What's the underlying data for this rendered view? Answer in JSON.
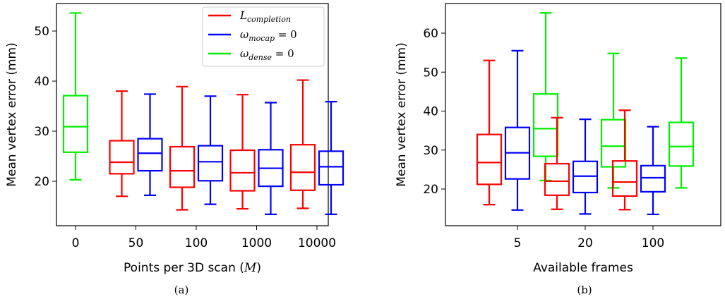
{
  "chart_data": [
    {
      "type": "box",
      "caption": "(a)",
      "xlabel": "Points per 3D scan (M)",
      "ylabel": "Mean vertex error (mm)",
      "ylim": [
        11.5,
        57
      ],
      "yticks": [
        20,
        30,
        40,
        50
      ],
      "categories": [
        "0",
        "50",
        "100",
        "1000",
        "10000"
      ],
      "legend": {
        "placement": "top-right",
        "entries": [
          {
            "label": "L_completion",
            "color": "#ff0000"
          },
          {
            "label": "ω_mocap = 0",
            "color": "#0000ff"
          },
          {
            "label": "ω_dense = 0",
            "color": "#00ee00"
          }
        ]
      },
      "boxes": [
        {
          "category": "0",
          "series": "ω_dense = 0",
          "color": "#00ee00",
          "whislo": 20.3,
          "q1": 25.8,
          "med": 30.9,
          "q3": 37.1,
          "whishi": 53.6
        },
        {
          "category": "50",
          "series": "L_completion",
          "color": "#ff0000",
          "whislo": 17.0,
          "q1": 21.5,
          "med": 23.8,
          "q3": 28.1,
          "whishi": 38.0
        },
        {
          "category": "50",
          "series": "ω_mocap = 0",
          "color": "#0000ff",
          "whislo": 17.2,
          "q1": 22.1,
          "med": 25.6,
          "q3": 28.5,
          "whishi": 37.4
        },
        {
          "category": "100",
          "series": "L_completion",
          "color": "#ff0000",
          "whislo": 14.3,
          "q1": 18.8,
          "med": 22.1,
          "q3": 26.9,
          "whishi": 38.9
        },
        {
          "category": "100",
          "series": "ω_mocap = 0",
          "color": "#0000ff",
          "whislo": 15.4,
          "q1": 20.1,
          "med": 23.9,
          "q3": 27.1,
          "whishi": 37.0
        },
        {
          "category": "1000",
          "series": "L_completion",
          "color": "#ff0000",
          "whislo": 14.5,
          "q1": 18.1,
          "med": 21.7,
          "q3": 26.2,
          "whishi": 37.3
        },
        {
          "category": "1000",
          "series": "ω_mocap = 0",
          "color": "#0000ff",
          "whislo": 13.4,
          "q1": 19.0,
          "med": 22.6,
          "q3": 26.3,
          "whishi": 35.7
        },
        {
          "category": "10000",
          "series": "L_completion",
          "color": "#ff0000",
          "whislo": 14.6,
          "q1": 18.2,
          "med": 21.8,
          "q3": 27.3,
          "whishi": 40.2
        },
        {
          "category": "10000",
          "series": "ω_mocap = 0",
          "color": "#0000ff",
          "whislo": 13.4,
          "q1": 19.3,
          "med": 22.9,
          "q3": 26.0,
          "whishi": 35.9
        }
      ]
    },
    {
      "type": "box",
      "caption": "(b)",
      "xlabel": "Available frames",
      "ylabel": "Mean vertex error (mm)",
      "ylim": [
        11,
        68
      ],
      "yticks": [
        20,
        30,
        40,
        50,
        60
      ],
      "categories": [
        "5",
        "20",
        "100"
      ],
      "boxes": [
        {
          "category": "5",
          "series": "L_completion",
          "color": "#ff0000",
          "whislo": 16.0,
          "q1": 21.2,
          "med": 26.8,
          "q3": 34.0,
          "whishi": 53.0
        },
        {
          "category": "5",
          "series": "ω_mocap = 0",
          "color": "#0000ff",
          "whislo": 14.6,
          "q1": 22.6,
          "med": 29.3,
          "q3": 35.8,
          "whishi": 55.5
        },
        {
          "category": "5",
          "series": "ω_dense = 0",
          "color": "#00ee00",
          "whislo": 22.2,
          "q1": 28.4,
          "med": 35.5,
          "q3": 44.4,
          "whishi": 65.2
        },
        {
          "category": "20",
          "series": "L_completion",
          "color": "#ff0000",
          "whislo": 14.8,
          "q1": 18.4,
          "med": 22.0,
          "q3": 26.5,
          "whishi": 38.3
        },
        {
          "category": "20",
          "series": "ω_mocap = 0",
          "color": "#0000ff",
          "whislo": 13.6,
          "q1": 19.1,
          "med": 23.3,
          "q3": 27.1,
          "whishi": 37.9
        },
        {
          "category": "20",
          "series": "ω_dense = 0",
          "color": "#00ee00",
          "whislo": 20.3,
          "q1": 25.7,
          "med": 31.0,
          "q3": 37.8,
          "whishi": 54.8
        },
        {
          "category": "100",
          "series": "L_completion",
          "color": "#ff0000",
          "whislo": 14.7,
          "q1": 18.2,
          "med": 21.8,
          "q3": 27.2,
          "whishi": 40.2
        },
        {
          "category": "100",
          "series": "ω_mocap = 0",
          "color": "#0000ff",
          "whislo": 13.5,
          "q1": 19.3,
          "med": 22.9,
          "q3": 26.0,
          "whishi": 36.0
        },
        {
          "category": "100",
          "series": "ω_dense = 0",
          "color": "#00ee00",
          "whislo": 20.3,
          "q1": 25.9,
          "med": 30.9,
          "q3": 37.1,
          "whishi": 53.6
        }
      ]
    }
  ]
}
